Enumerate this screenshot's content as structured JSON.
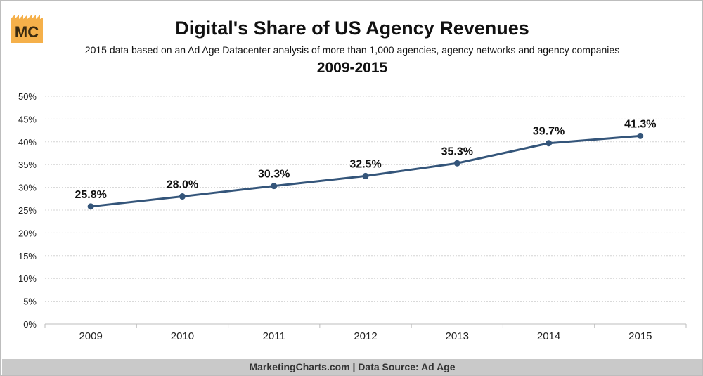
{
  "logo": {
    "text": "MC",
    "color": "#f5b04a"
  },
  "chart_data": {
    "type": "line",
    "title": "Digital's Share of US Agency Revenues",
    "subtitle": "2015 data based on an Ad Age Datacenter analysis of more than 1,000 agencies, agency networks and agency companies",
    "subtitle2": "2009-2015",
    "categories": [
      "2009",
      "2010",
      "2011",
      "2012",
      "2013",
      "2014",
      "2015"
    ],
    "series": [
      {
        "name": "Digital's share",
        "values": [
          25.8,
          28.0,
          30.3,
          32.5,
          35.3,
          39.7,
          41.3
        ],
        "color": "#34557a"
      }
    ],
    "data_labels": [
      "25.8%",
      "28.0%",
      "30.3%",
      "32.5%",
      "35.3%",
      "39.7%",
      "41.3%"
    ],
    "ylim": [
      0,
      50
    ],
    "yticks": [
      "0%",
      "5%",
      "10%",
      "15%",
      "20%",
      "25%",
      "30%",
      "35%",
      "40%",
      "45%",
      "50%"
    ],
    "grid": true,
    "xlabel": "",
    "ylabel": ""
  },
  "footer": {
    "text": "MarketingCharts.com | Data Source: Ad Age"
  }
}
